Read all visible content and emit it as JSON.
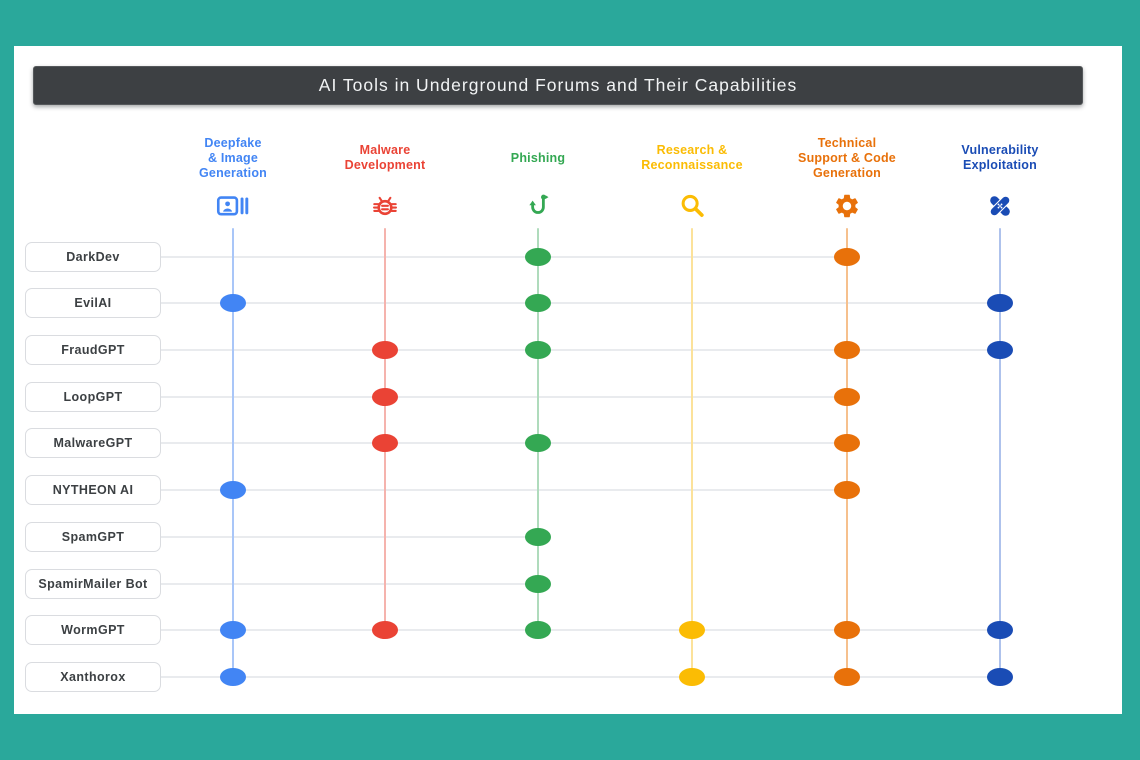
{
  "page": {
    "background_color": "#2AA89B",
    "card_color": "#FFFFFF",
    "title_bar_color": "#3D4043",
    "title_text_color": "#F1F3F4",
    "row_line_color": "#E9EBEE",
    "label_border_color": "#DADCE0",
    "label_text_color": "#3C4043"
  },
  "chart_data": {
    "type": "heatmap",
    "subtype": "dot-matrix",
    "title": "AI Tools in Underground Forums and Their Capabilities",
    "legend_position": "none",
    "grid": "row-and-column-guides",
    "columns": [
      {
        "label": "Deepfake & Image Generation",
        "label_lines": [
          "Deepfake",
          "& Image",
          "Generation"
        ],
        "icon": "deepfake-image-icon",
        "color": "#4285F4",
        "line_color": "#A9C6F8"
      },
      {
        "label": "Malware Development",
        "label_lines": [
          "Malware",
          "Development"
        ],
        "icon": "malware-bug-icon",
        "color": "#EA4335",
        "line_color": "#F5B3AD"
      },
      {
        "label": "Phishing",
        "label_lines": [
          "Phishing"
        ],
        "icon": "phishing-hook-icon",
        "color": "#34A853",
        "line_color": "#AFDBBC"
      },
      {
        "label": "Research & Reconnaissance",
        "label_lines": [
          "Research &",
          "Reconnaissance"
        ],
        "icon": "research-magnifier-icon",
        "color": "#FBBC04",
        "line_color": "#FCE29A"
      },
      {
        "label": "Technical Support & Code Generation",
        "label_lines": [
          "Technical",
          "Support & Code",
          "Generation"
        ],
        "icon": "tech-support-gear-icon",
        "color": "#E8710A",
        "line_color": "#F6C08D"
      },
      {
        "label": "Vulnerability Exploitation",
        "label_lines": [
          "Vulnerability",
          "Exploitation"
        ],
        "icon": "vulnerability-bandage-icon",
        "color": "#1A4CB5",
        "line_color": "#AEC2EC"
      }
    ],
    "rows": [
      {
        "label": "DarkDev",
        "values": [
          0,
          0,
          1,
          0,
          1,
          0
        ]
      },
      {
        "label": "EvilAI",
        "values": [
          1,
          0,
          1,
          0,
          0,
          1
        ]
      },
      {
        "label": "FraudGPT",
        "values": [
          0,
          1,
          1,
          0,
          1,
          1
        ]
      },
      {
        "label": "LoopGPT",
        "values": [
          0,
          1,
          0,
          0,
          1,
          0
        ]
      },
      {
        "label": "MalwareGPT",
        "values": [
          0,
          1,
          1,
          0,
          1,
          0
        ]
      },
      {
        "label": "NYTHEON AI",
        "values": [
          1,
          0,
          0,
          0,
          1,
          0
        ]
      },
      {
        "label": "SpamGPT",
        "values": [
          0,
          0,
          1,
          0,
          0,
          0
        ]
      },
      {
        "label": "SpamirMailer Bot",
        "values": [
          0,
          0,
          1,
          0,
          0,
          0
        ]
      },
      {
        "label": "WormGPT",
        "values": [
          1,
          1,
          1,
          1,
          1,
          1
        ]
      },
      {
        "label": "Xanthorox",
        "values": [
          1,
          0,
          0,
          1,
          1,
          1
        ]
      }
    ]
  }
}
